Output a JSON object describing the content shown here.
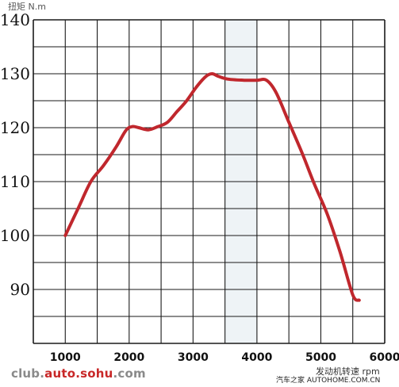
{
  "chart_data": {
    "type": "line",
    "title": "",
    "ylabel": "扭矩 N.m",
    "xlabel": "发动机转速 rpm",
    "xlim": [
      500,
      6000
    ],
    "ylim": [
      80,
      140
    ],
    "x_ticks": [
      "1000",
      "2000",
      "3000",
      "4000",
      "5000",
      "6000"
    ],
    "y_ticks": [
      "90",
      "100",
      "110",
      "120",
      "130",
      "140"
    ],
    "grid": true,
    "line_color": "#c0272d",
    "series": [
      {
        "name": "",
        "x": [
          1000,
          1200,
          1400,
          1600,
          1800,
          1950,
          2050,
          2150,
          2300,
          2450,
          2600,
          2750,
          2900,
          3050,
          3200,
          3300,
          3400,
          3550,
          3800,
          4000,
          4150,
          4300,
          4500,
          4700,
          4900,
          5100,
          5300,
          5500,
          5600
        ],
        "y": [
          100,
          105,
          110,
          113,
          116.5,
          119.5,
          120.2,
          120,
          119.6,
          120.2,
          121,
          123,
          125,
          127.5,
          129.5,
          130,
          129.5,
          129,
          128.8,
          128.8,
          128.8,
          126.5,
          121,
          115.5,
          109.5,
          104,
          97,
          89,
          88
        ]
      }
    ]
  },
  "watermarks": {
    "left_prefix": "club.",
    "left_accent": "auto.sohu",
    "left_suffix": ".com",
    "right": "汽车之家 AUTOHOME.COM.CN"
  }
}
